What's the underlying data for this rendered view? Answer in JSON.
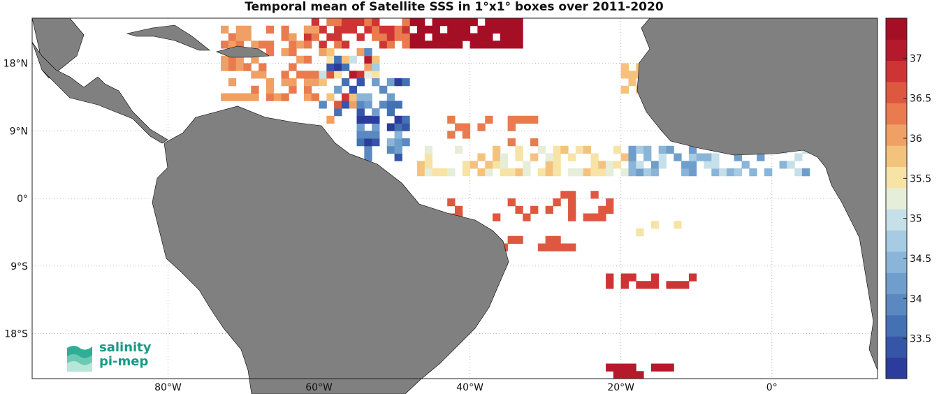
{
  "title": "Temporal mean of Satellite SSS in 1°x1° boxes over 2011-2020",
  "map": {
    "lon_range": [
      -98,
      14
    ],
    "lat_range": [
      -24,
      24
    ],
    "lat_ticks": [
      {
        "value": 18,
        "label": "18°N"
      },
      {
        "value": 9,
        "label": "9°N"
      },
      {
        "value": 0,
        "label": "0°"
      },
      {
        "value": -9,
        "label": "9°S"
      },
      {
        "value": -18,
        "label": "18°S"
      }
    ],
    "lon_ticks": [
      {
        "value": -80,
        "label": "80°W"
      },
      {
        "value": -60,
        "label": "60°W"
      },
      {
        "value": -40,
        "label": "40°W"
      },
      {
        "value": -20,
        "label": "20°W"
      },
      {
        "value": 0,
        "label": "0°"
      }
    ],
    "land_color": "#808080",
    "grid": "dotted"
  },
  "colorbar": {
    "min": 33,
    "max": 37.5,
    "ticks": [
      "33.5",
      "34",
      "34.5",
      "35",
      "35.5",
      "36",
      "36.5",
      "37"
    ],
    "colors": [
      "#2b3c9c",
      "#3755a8",
      "#4470b4",
      "#5a88c0",
      "#6f9ecc",
      "#8ab5d8",
      "#a6cbe2",
      "#c6e0ea",
      "#e6eed9",
      "#f7e3a6",
      "#f5c27e",
      "#f0a064",
      "#e97b4f",
      "#de5840",
      "#cf3434",
      "#b51a2c",
      "#a50f26"
    ]
  },
  "logo": {
    "line1": "salinity",
    "line2": "pi-mep"
  }
}
